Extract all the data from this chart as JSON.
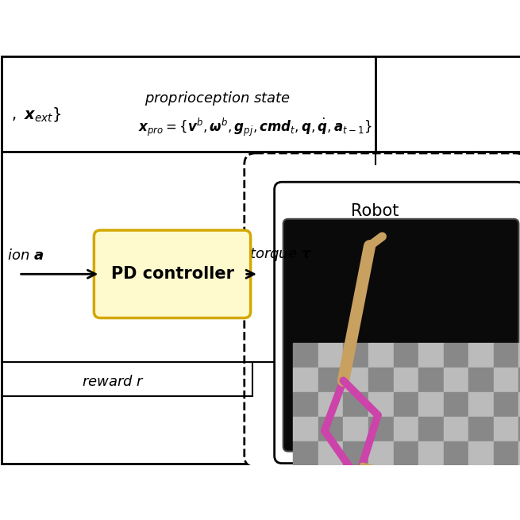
{
  "bg_color": "#ffffff",
  "box_fill": "#fffacd",
  "box_edge": "#d4a800",
  "robot_color": "#cc44aa",
  "tan_color": "#c8a060",
  "dark_bg": "#0a0a0a",
  "floor_dark": "#888888",
  "floor_light": "#bbbbbb",
  "label_obs": "$\\mathbf{,\\ x}_{ext}\\}$",
  "label_prop_state": "proprioception state",
  "label_prop_eq": "$\\boldsymbol{x}_{pro}=\\{\\boldsymbol{v}^b,\\boldsymbol{\\omega}^b,\\boldsymbol{g}_{pj},\\boldsymbol{cmd}_t,\\boldsymbol{q},\\dot{\\boldsymbol{q}},\\boldsymbol{a}_{t-1}\\}$",
  "label_action": "ion $\\boldsymbol{a}$",
  "label_torque": "torque $\\boldsymbol{\\tau}$",
  "label_reward": "reward  $r$",
  "label_pd": "PD controller",
  "label_robot": "Robot"
}
